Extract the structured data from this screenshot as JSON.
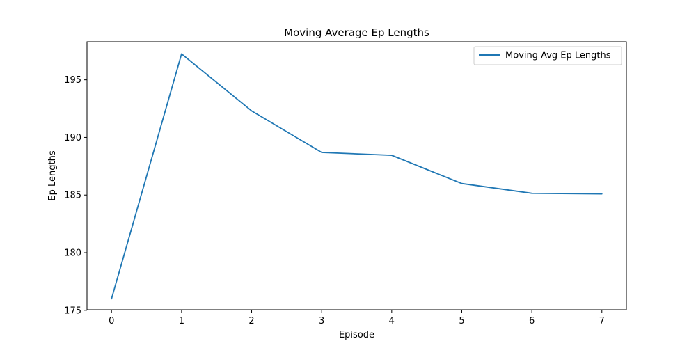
{
  "chart_data": {
    "type": "line",
    "title": "Moving Average Ep Lengths",
    "xlabel": "Episode",
    "ylabel": "Ep Lengths",
    "x": [
      0,
      1,
      2,
      3,
      4,
      5,
      6,
      7
    ],
    "series": [
      {
        "name": "Moving Avg Ep Lengths",
        "color": "#1f77b4",
        "values": [
          176.0,
          197.25,
          192.3,
          188.7,
          188.45,
          186.0,
          185.15,
          185.1
        ]
      }
    ],
    "xlim": [
      -0.35,
      7.35
    ],
    "ylim": [
      175.05,
      198.3
    ],
    "xticks": [
      0,
      1,
      2,
      3,
      4,
      5,
      6,
      7
    ],
    "yticks": [
      175,
      180,
      185,
      190,
      195
    ],
    "grid": false,
    "legend_position": "top-right"
  }
}
